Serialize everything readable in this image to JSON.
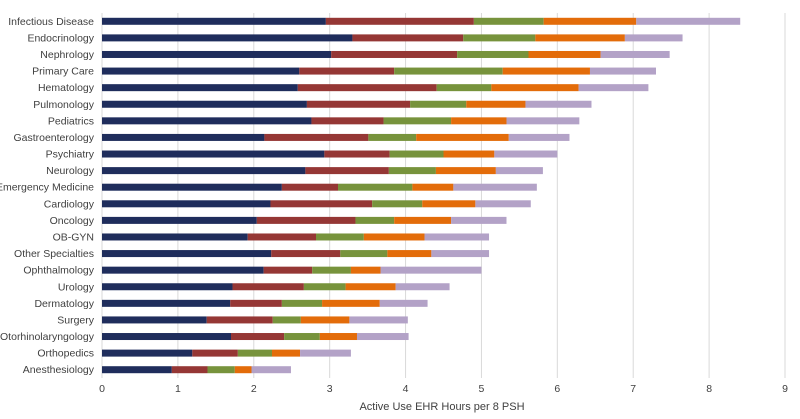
{
  "chart_data": {
    "type": "bar",
    "orientation": "horizontal",
    "stacked": true,
    "title": "",
    "xlabel": "Active Use EHR Hours per 8 PSH",
    "ylabel": "",
    "xlim": [
      0,
      9
    ],
    "xticks": [
      "0",
      "1",
      "2",
      "3",
      "4",
      "5",
      "6",
      "7",
      "8",
      "9"
    ],
    "grid": true,
    "legend": "none",
    "categories": [
      "Infectious Disease",
      "Endocrinology",
      "Nephrology",
      "Primary Care",
      "Hematology",
      "Pulmonology",
      "Pediatrics",
      "Gastroenterology",
      "Psychiatry",
      "Neurology",
      "Emergency Medicine",
      "Cardiology",
      "Oncology",
      "OB-GYN",
      "Other Specialties",
      "Ophthalmology",
      "Urology",
      "Dermatology",
      "Surgery",
      "Otorhinolaryngology",
      "Orthopedics",
      "Anesthesiology"
    ],
    "series": [
      {
        "name": "Segment 1",
        "color": "#1f2d5c",
        "values": [
          2.95,
          3.3,
          3.02,
          2.6,
          2.58,
          2.7,
          2.76,
          2.14,
          2.93,
          2.68,
          2.37,
          2.22,
          2.04,
          1.92,
          2.23,
          2.13,
          1.72,
          1.69,
          1.38,
          1.7,
          1.19,
          0.92
        ]
      },
      {
        "name": "Segment 2",
        "color": "#953735",
        "values": [
          1.95,
          1.46,
          1.66,
          1.25,
          1.83,
          1.36,
          0.95,
          1.37,
          0.86,
          1.1,
          0.74,
          1.34,
          1.3,
          0.9,
          0.91,
          0.64,
          0.94,
          0.68,
          0.87,
          0.7,
          0.6,
          0.47
        ]
      },
      {
        "name": "Segment 3",
        "color": "#77933c",
        "values": [
          0.92,
          0.95,
          0.94,
          1.43,
          0.72,
          0.74,
          0.89,
          0.63,
          0.71,
          0.62,
          0.98,
          0.66,
          0.51,
          0.63,
          0.62,
          0.51,
          0.55,
          0.53,
          0.37,
          0.47,
          0.45,
          0.36
        ]
      },
      {
        "name": "Segment 4",
        "color": "#e36c0a",
        "values": [
          1.22,
          1.18,
          0.95,
          1.15,
          1.15,
          0.78,
          0.73,
          1.22,
          0.67,
          0.79,
          0.54,
          0.7,
          0.75,
          0.8,
          0.58,
          0.39,
          0.66,
          0.76,
          0.64,
          0.49,
          0.37,
          0.22
        ]
      },
      {
        "name": "Segment 5",
        "color": "#b3a2c7",
        "values": [
          1.37,
          0.76,
          0.91,
          0.87,
          0.92,
          0.87,
          0.96,
          0.8,
          0.83,
          0.62,
          1.1,
          0.73,
          0.73,
          0.85,
          0.76,
          1.33,
          0.71,
          0.63,
          0.77,
          0.68,
          0.67,
          0.52
        ]
      }
    ]
  }
}
